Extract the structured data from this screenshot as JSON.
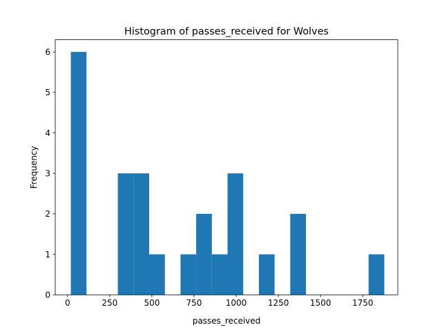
{
  "chart_data": {
    "type": "bar",
    "title": "Histogram of passes_received for Wolves",
    "xlabel": "passes_received",
    "ylabel": "Frequency",
    "bar_color": "#1f77b4",
    "xlim": [
      -72.7,
      1957.7
    ],
    "ylim": [
      0,
      6.3
    ],
    "xticks": [
      0,
      250,
      500,
      750,
      1000,
      1250,
      1500,
      1750
    ],
    "yticks": [
      0,
      1,
      2,
      3,
      4,
      5,
      6
    ],
    "bin_start": 19.6,
    "bin_width": 92.9,
    "counts": [
      6,
      0,
      0,
      3,
      3,
      1,
      0,
      1,
      2,
      1,
      3,
      0,
      1,
      0,
      2,
      0,
      0,
      0,
      0,
      1
    ],
    "grid": false,
    "legend": "none"
  }
}
